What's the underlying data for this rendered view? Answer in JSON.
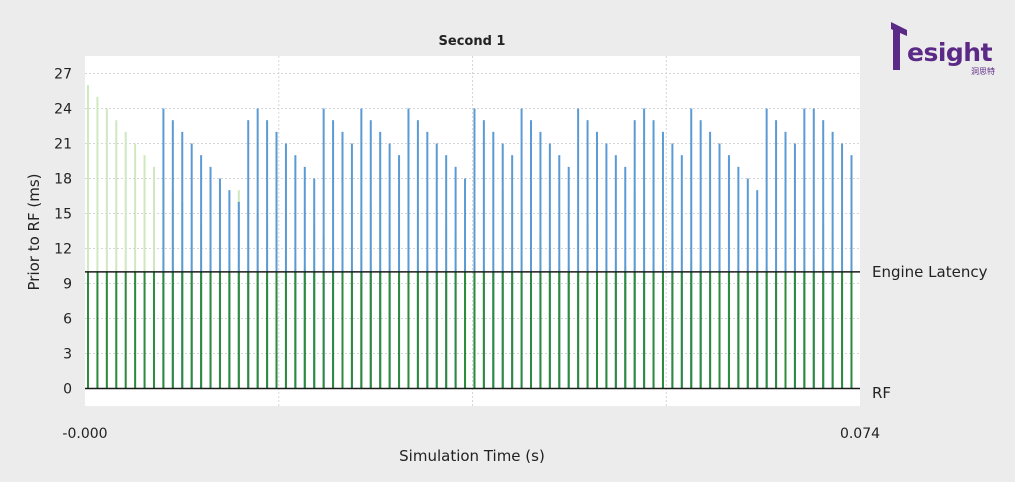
{
  "brand": {
    "logo_text": "esight",
    "logo_subtext": "洞思特",
    "color": "#5b2a86"
  },
  "chart_data": {
    "type": "bar",
    "title": "Second 1",
    "xlabel": "Simulation Time (s)",
    "ylabel": "Prior to RF (ms)",
    "xlim": [
      0.0,
      0.074
    ],
    "ylim": [
      -1.5,
      28.5
    ],
    "x_tick_labels": [
      "-0.000",
      "0.074"
    ],
    "y_ticks": [
      0,
      3,
      6,
      9,
      12,
      15,
      18,
      21,
      24,
      27
    ],
    "grid": true,
    "reference_lines": [
      {
        "name": "Engine Latency",
        "value": 10
      },
      {
        "name": "RF",
        "value": 0
      }
    ],
    "colors": {
      "background": "#ececec",
      "plot_area": "#ffffff",
      "grid": "#d6d6d6",
      "green_bar": "#2e8b3e",
      "light_green_bar": "#cfe8c0",
      "blue_bar": "#5b9bd5",
      "reference_line": "#1a1a1a"
    },
    "series": [
      {
        "name": "",
        "color": "#2e8b3e",
        "x": [
          0.0,
          0.0009,
          0.0018,
          0.0027,
          0.0036,
          0.0045,
          0.0054,
          0.0063,
          0.0072,
          0.0081,
          0.009,
          0.0099,
          0.0108,
          0.0117,
          0.0126,
          0.0135,
          0.0144,
          0.0153,
          0.0162,
          0.0171,
          0.018,
          0.0189,
          0.0198,
          0.0207,
          0.0216,
          0.0225,
          0.0234,
          0.0243,
          0.0252,
          0.0261,
          0.027,
          0.0279,
          0.0288,
          0.0297,
          0.0306,
          0.0315,
          0.0324,
          0.0333,
          0.0342,
          0.0351,
          0.036,
          0.0369,
          0.0378,
          0.0387,
          0.0396,
          0.0405,
          0.0414,
          0.0423,
          0.0432,
          0.0441,
          0.045,
          0.0459,
          0.0468,
          0.0477,
          0.0486,
          0.0495,
          0.0504,
          0.0513,
          0.0522,
          0.0531,
          0.054,
          0.0549,
          0.0558,
          0.0567,
          0.0576,
          0.0585,
          0.0594,
          0.0603,
          0.0612,
          0.0621,
          0.063,
          0.0639,
          0.0648,
          0.0657,
          0.0666,
          0.0675,
          0.0684,
          0.0693,
          0.0702,
          0.0711,
          0.072,
          0.0729
        ],
        "values": [
          10,
          10,
          10,
          10,
          10,
          10,
          10,
          10,
          10,
          10,
          10,
          10,
          10,
          10,
          10,
          10,
          10,
          10,
          10,
          10,
          10,
          10,
          10,
          10,
          10,
          10,
          10,
          10,
          10,
          10,
          10,
          10,
          10,
          10,
          10,
          10,
          10,
          10,
          10,
          10,
          10,
          10,
          10,
          10,
          10,
          10,
          10,
          10,
          10,
          10,
          10,
          10,
          10,
          10,
          10,
          10,
          10,
          10,
          10,
          10,
          10,
          10,
          10,
          10,
          10,
          10,
          10,
          10,
          10,
          10,
          10,
          10,
          10,
          10,
          10,
          10,
          10,
          10,
          10,
          10,
          10,
          10
        ]
      },
      {
        "name": "",
        "color": "#cfe8c0",
        "x": [
          0.0,
          0.0009,
          0.0018,
          0.0027,
          0.0036,
          0.0045,
          0.0054,
          0.0063,
          0.0072,
          0.0081,
          0.009,
          0.0099,
          0.0108,
          0.0117,
          0.0126,
          0.0135,
          0.0144,
          0.0153,
          0.0162,
          0.0171,
          0.018,
          0.0189,
          0.0198,
          0.0207,
          0.0216,
          0.0225,
          0.0234,
          0.0243,
          0.0252,
          0.0261,
          0.027,
          0.0279,
          0.0288,
          0.0297,
          0.0306,
          0.0315,
          0.0324,
          0.0333,
          0.0342,
          0.0351,
          0.036,
          0.0369,
          0.0378,
          0.0387,
          0.0396,
          0.0405,
          0.0414,
          0.0423,
          0.0432,
          0.0441,
          0.045,
          0.0459,
          0.0468,
          0.0477,
          0.0486,
          0.0495,
          0.0504,
          0.0513,
          0.0522,
          0.0531,
          0.054,
          0.0549,
          0.0558,
          0.0567,
          0.0576,
          0.0585,
          0.0594,
          0.0603,
          0.0612,
          0.0621,
          0.063,
          0.0639,
          0.0648,
          0.0657,
          0.0666,
          0.0675,
          0.0684,
          0.0693,
          0.0702,
          0.0711,
          0.072,
          0.0729
        ],
        "values": [
          26,
          25,
          24,
          23,
          22,
          21,
          20,
          19,
          18,
          17,
          16,
          15,
          14,
          13,
          12,
          11,
          17,
          16,
          15,
          14,
          13,
          12,
          11,
          10.5,
          14,
          13,
          12,
          11,
          10.5,
          15,
          16,
          15,
          14,
          13,
          12,
          11,
          10.5,
          10,
          14,
          13,
          12,
          11,
          10.5,
          10,
          17,
          16,
          15,
          14,
          13,
          12,
          11,
          10.5,
          10,
          14,
          13,
          12,
          11,
          10.5,
          17,
          16,
          15,
          14,
          13,
          12,
          11,
          10.5,
          10,
          15,
          14,
          13,
          12,
          11,
          10.5,
          10,
          14,
          13,
          12,
          11,
          14,
          13,
          12,
          13
        ]
      },
      {
        "name": "",
        "color": "#5b9bd5",
        "x": [
          0.0072,
          0.0081,
          0.009,
          0.0099,
          0.0108,
          0.0117,
          0.0126,
          0.0135,
          0.0144,
          0.0153,
          0.0162,
          0.0171,
          0.018,
          0.0189,
          0.0198,
          0.0207,
          0.0216,
          0.0225,
          0.0234,
          0.0243,
          0.0252,
          0.0261,
          0.027,
          0.0279,
          0.0288,
          0.0297,
          0.0306,
          0.0315,
          0.0324,
          0.0333,
          0.0342,
          0.0351,
          0.036,
          0.0369,
          0.0378,
          0.0387,
          0.0396,
          0.0405,
          0.0414,
          0.0423,
          0.0432,
          0.0441,
          0.045,
          0.0459,
          0.0468,
          0.0477,
          0.0486,
          0.0495,
          0.0504,
          0.0513,
          0.0522,
          0.0531,
          0.054,
          0.0549,
          0.0558,
          0.0567,
          0.0576,
          0.0585,
          0.0594,
          0.0603,
          0.0612,
          0.0621,
          0.063,
          0.0639,
          0.0648,
          0.0657,
          0.0666,
          0.0675,
          0.0684,
          0.0693,
          0.0702,
          0.0711,
          0.072,
          0.0729
        ],
        "values": [
          24,
          23,
          22,
          21,
          20,
          19,
          18,
          17,
          16,
          23,
          24,
          23,
          22,
          21,
          20,
          19,
          18,
          24,
          23,
          22,
          21,
          24,
          23,
          22,
          21,
          20,
          24,
          23,
          22,
          21,
          20,
          19,
          18,
          24,
          23,
          22,
          21,
          20,
          24,
          23,
          22,
          21,
          20,
          19,
          24,
          23,
          22,
          21,
          20,
          19,
          23,
          24,
          23,
          22,
          21,
          20,
          24,
          23,
          22,
          21,
          20,
          19,
          18,
          17,
          24,
          23,
          22,
          21,
          24,
          24,
          23,
          22,
          21,
          20
        ]
      }
    ]
  }
}
